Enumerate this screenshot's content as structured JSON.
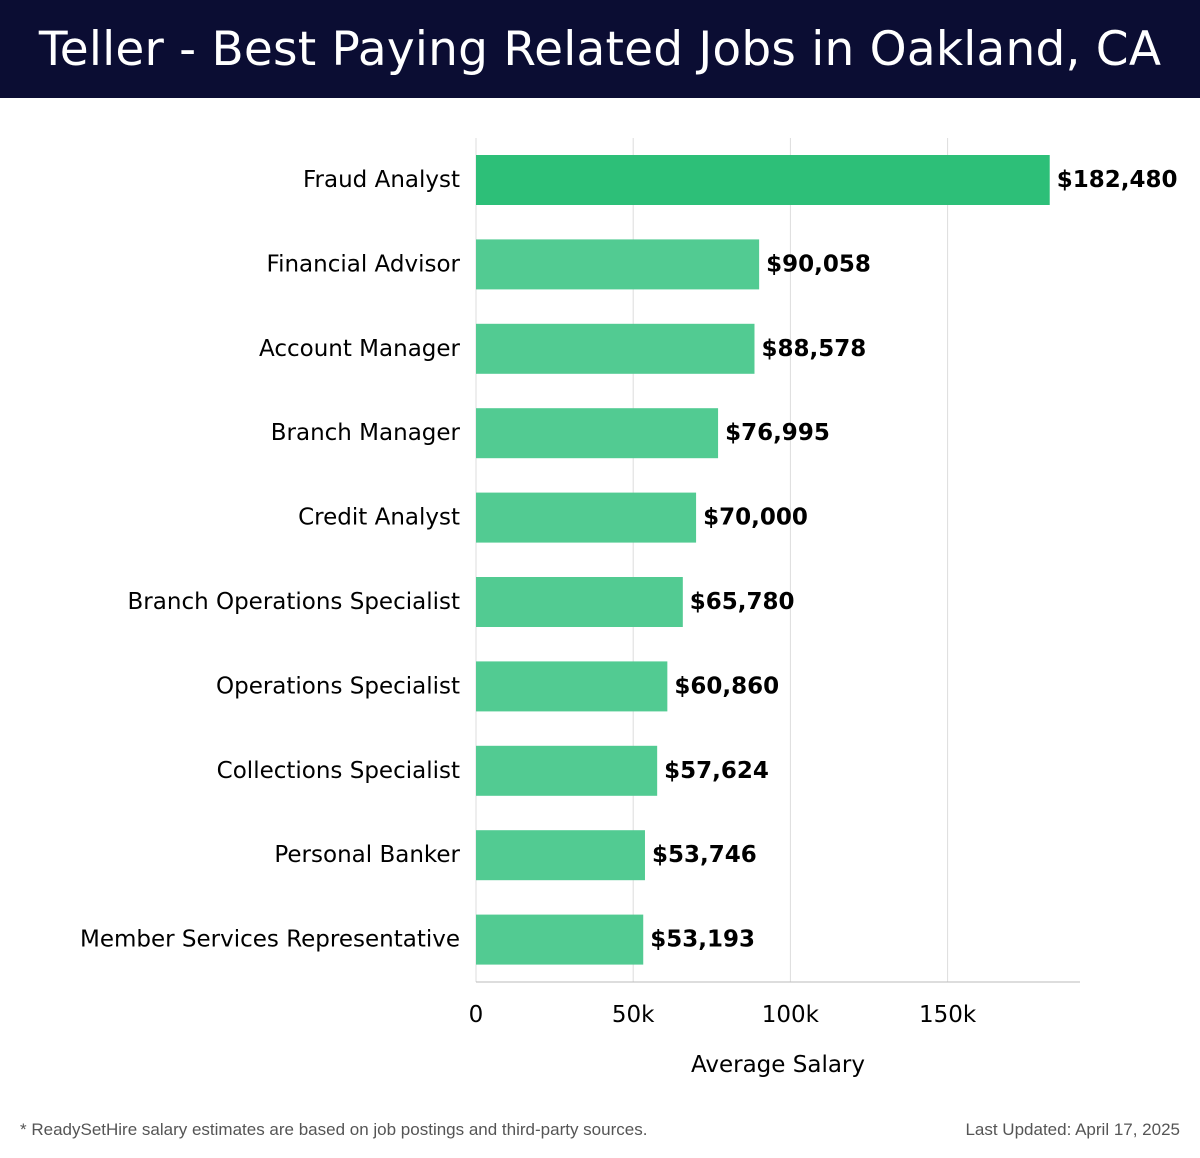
{
  "header": {
    "title": "Teller - Best Paying Related Jobs in Oakland, CA"
  },
  "chart_data": {
    "type": "bar",
    "orientation": "horizontal",
    "title": "Teller - Best Paying Related Jobs in Oakland, CA",
    "xlabel": "Average Salary",
    "ylabel": "",
    "xlim": [
      0,
      192000
    ],
    "x_ticks": [
      0,
      50000,
      100000,
      150000
    ],
    "x_tick_labels": [
      "0",
      "50k",
      "100k",
      "150k"
    ],
    "grid": "vertical",
    "categories": [
      "Fraud Analyst",
      "Financial Advisor",
      "Account Manager",
      "Branch Manager",
      "Credit Analyst",
      "Branch Operations Specialist",
      "Operations Specialist",
      "Collections Specialist",
      "Personal Banker",
      "Member Services Representative"
    ],
    "values": [
      182480,
      90058,
      88578,
      76995,
      70000,
      65780,
      60860,
      57624,
      53746,
      53193
    ],
    "value_labels": [
      "$182,480",
      "$90,058",
      "$88,578",
      "$76,995",
      "$70,000",
      "$65,780",
      "$60,860",
      "$57,624",
      "$53,746",
      "$53,193"
    ],
    "colors": {
      "top_bar": "#2dbf78",
      "bar": "#52cb92",
      "grid": "#dddddd",
      "axis": "#bbbbbb"
    }
  },
  "footer": {
    "note": "* ReadySetHire salary estimates are based on job postings and third-party sources.",
    "updated": "Last Updated: April 17, 2025"
  }
}
